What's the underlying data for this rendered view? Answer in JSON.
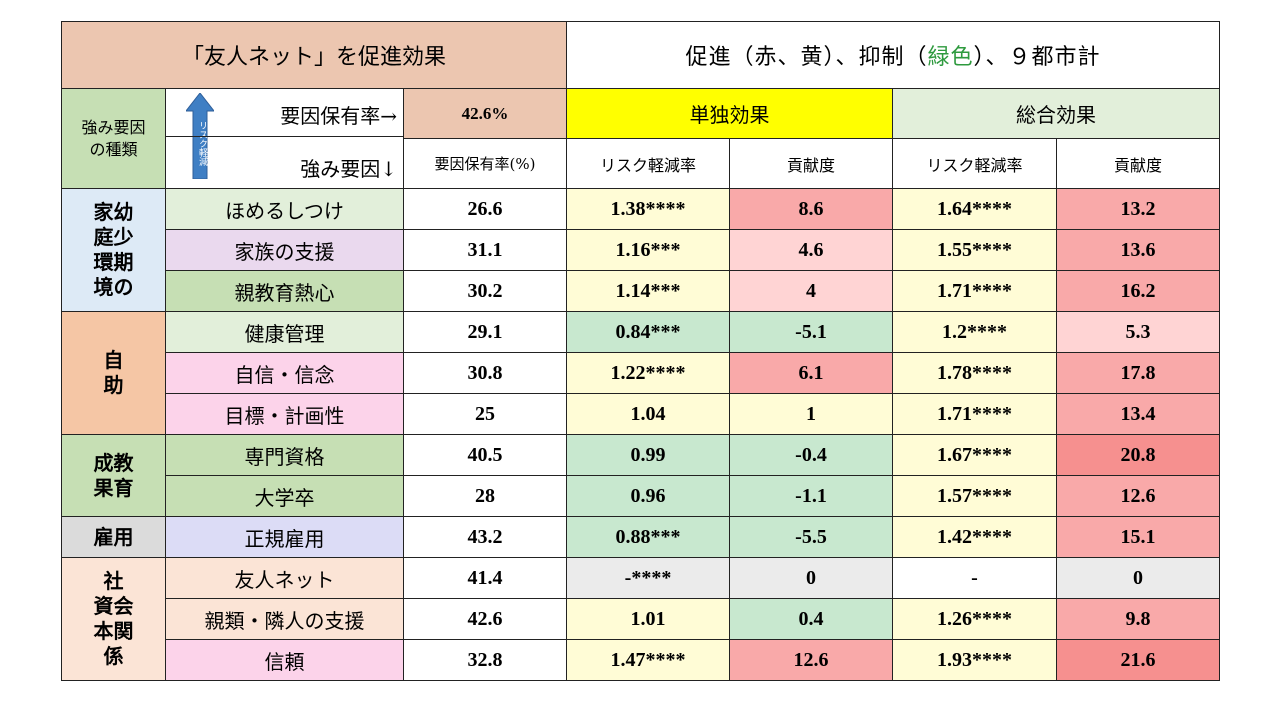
{
  "title_left": "「友人ネット」を促進効果",
  "title_right": {
    "part1": "促進（赤、黄）、抑制（",
    "green_word": "緑色",
    "part2": "）、９都市計"
  },
  "kind_label_line1": "強み要因",
  "kind_label_line2": "の種類",
  "arrow_text": "リスク軽減",
  "header_row1_label": "要因保有率→",
  "header_row2_label": "強み要因↓",
  "overall_rate": "42.6%",
  "single_effect": "単独効果",
  "total_effect": "総合効果",
  "col_rate": "要因保有率(%)",
  "col_risk1": "リスク軽減率",
  "col_contrib1": "貢献度",
  "col_risk2": "リスク軽減率",
  "col_contrib2": "貢献度",
  "categories": [
    {
      "label": "家幼\n庭少\n環期\n境の"
    },
    {
      "label": "自\n助"
    },
    {
      "label": "成教\n果育"
    },
    {
      "label": "雇用"
    },
    {
      "label": "社\n資会\n本関\n係"
    }
  ],
  "rows": [
    {
      "factor": "ほめるしつけ",
      "rate": "26.6",
      "risk1": "1.38****",
      "contrib1": "8.6",
      "risk2": "1.64****",
      "contrib2": "13.2"
    },
    {
      "factor": "家族の支援",
      "rate": "31.1",
      "risk1": "1.16***",
      "contrib1": "4.6",
      "risk2": "1.55****",
      "contrib2": "13.6"
    },
    {
      "factor": "親教育熱心",
      "rate": "30.2",
      "risk1": "1.14***",
      "contrib1": "4",
      "risk2": "1.71****",
      "contrib2": "16.2"
    },
    {
      "factor": "健康管理",
      "rate": "29.1",
      "risk1": "0.84***",
      "contrib1": "-5.1",
      "risk2": "1.2****",
      "contrib2": "5.3"
    },
    {
      "factor": "自信・信念",
      "rate": "30.8",
      "risk1": "1.22****",
      "contrib1": "6.1",
      "risk2": "1.78****",
      "contrib2": "17.8"
    },
    {
      "factor": "目標・計画性",
      "rate": "25",
      "risk1": "1.04",
      "contrib1": "1",
      "risk2": "1.71****",
      "contrib2": "13.4"
    },
    {
      "factor": "専門資格",
      "rate": "40.5",
      "risk1": "0.99",
      "contrib1": "-0.4",
      "risk2": "1.67****",
      "contrib2": "20.8"
    },
    {
      "factor": "大学卒",
      "rate": "28",
      "risk1": "0.96",
      "contrib1": "-1.1",
      "risk2": "1.57****",
      "contrib2": "12.6"
    },
    {
      "factor": "正規雇用",
      "rate": "43.2",
      "risk1": "0.88***",
      "contrib1": "-5.5",
      "risk2": "1.42****",
      "contrib2": "15.1"
    },
    {
      "factor": "友人ネット",
      "rate": "41.4",
      "risk1": "-****",
      "contrib1": "0",
      "risk2": "-",
      "contrib2": "0"
    },
    {
      "factor": "親類・隣人の支援",
      "rate": "42.6",
      "risk1": "1.01",
      "contrib1": "0.4",
      "risk2": "1.26****",
      "contrib2": "9.8"
    },
    {
      "factor": "信頼",
      "rate": "32.8",
      "risk1": "1.47****",
      "contrib1": "12.6",
      "risk2": "1.93****",
      "contrib2": "21.6"
    }
  ],
  "colors": {
    "factor_bg": [
      "#e2efda",
      "#ead9ee",
      "#c6dfb4",
      "#e2efda",
      "#fcd3ea",
      "#fcd3ea",
      "#c6dfb4",
      "#c6dfb4",
      "#dcdcf6",
      "#fbe4d6",
      "#fbe4d6",
      "#fcd3ea"
    ],
    "risk1_bg": [
      "#fffcd6",
      "#fffcd6",
      "#fffcd6",
      "#c8e8cf",
      "#fffcd6",
      "#fffcd6",
      "#c8e8cf",
      "#c8e8cf",
      "#c8e8cf",
      "#ebebeb",
      "#fffcd6",
      "#fffcd6"
    ],
    "contrib1_bg": [
      "#f9a9a9",
      "#ffd4d4",
      "#ffd4d4",
      "#c8e8cf",
      "#f9a9a9",
      "#fffcd6",
      "#c8e8cf",
      "#c8e8cf",
      "#c8e8cf",
      "#ebebeb",
      "#c8e8cf",
      "#f9a9a9"
    ],
    "risk2_bg": [
      "#fffcd6",
      "#fffcd6",
      "#fffcd6",
      "#fffcd6",
      "#fffcd6",
      "#fffcd6",
      "#fffcd6",
      "#fffcd6",
      "#fffcd6",
      "#ffffff",
      "#fffcd6",
      "#fffcd6"
    ],
    "contrib2_bg": [
      "#f9a9a9",
      "#f9a9a9",
      "#f9a9a9",
      "#ffd4d4",
      "#f9a9a9",
      "#f9a9a9",
      "#f6908f",
      "#f9a9a9",
      "#f9a9a9",
      "#ebebeb",
      "#f9a9a9",
      "#f6908f"
    ],
    "arrow_blue": "#3f7fc4"
  }
}
